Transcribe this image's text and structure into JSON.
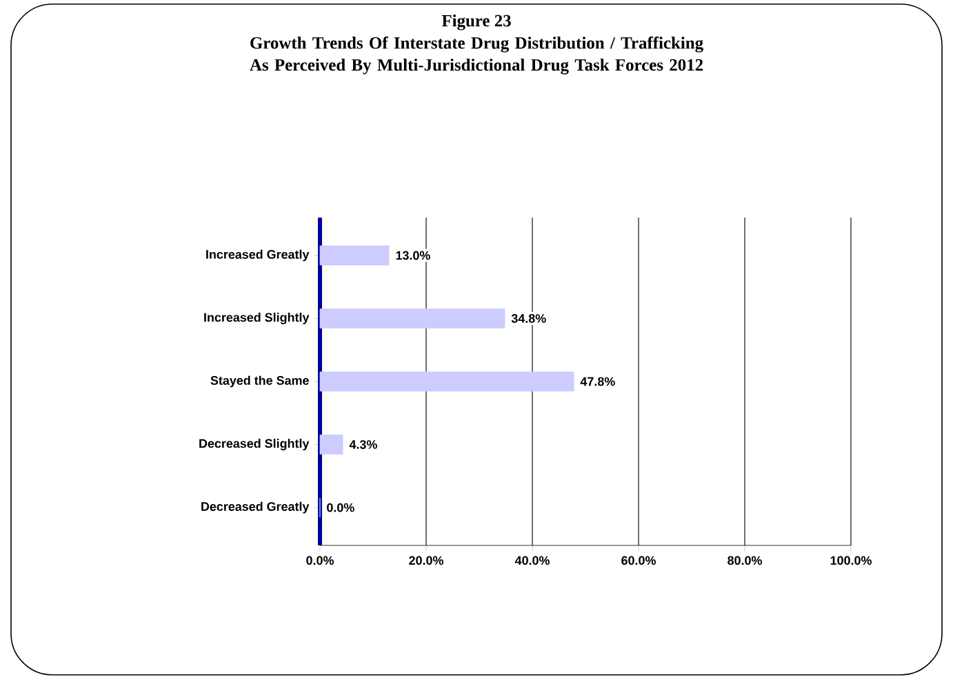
{
  "chart_data": {
    "type": "bar",
    "orientation": "horizontal",
    "title": "Figure 23",
    "subtitle": "Growth Trends Of Interstate Drug Distribution / Trafficking As Perceived By Multi-Jurisdictional Drug Task Forces 2012",
    "categories": [
      "Increased Greatly",
      "Increased Slightly",
      "Stayed the Same",
      "Decreased Slightly",
      "Decreased Greatly"
    ],
    "values": [
      13.0,
      34.8,
      47.8,
      4.3,
      0.0
    ],
    "value_labels": [
      "13.0%",
      "34.8%",
      "47.8%",
      "4.3%",
      "0.0%"
    ],
    "color": "#ccccff",
    "xlim": [
      0,
      100
    ],
    "xticks": [
      {
        "value": 0,
        "label": "0.0%"
      },
      {
        "value": 20,
        "label": "20.0%"
      },
      {
        "value": 40,
        "label": "40.0%"
      },
      {
        "value": 60,
        "label": "60.0%"
      },
      {
        "value": 80,
        "label": "80.0%"
      },
      {
        "value": 100,
        "label": "100.0%"
      }
    ],
    "grid": "x"
  }
}
